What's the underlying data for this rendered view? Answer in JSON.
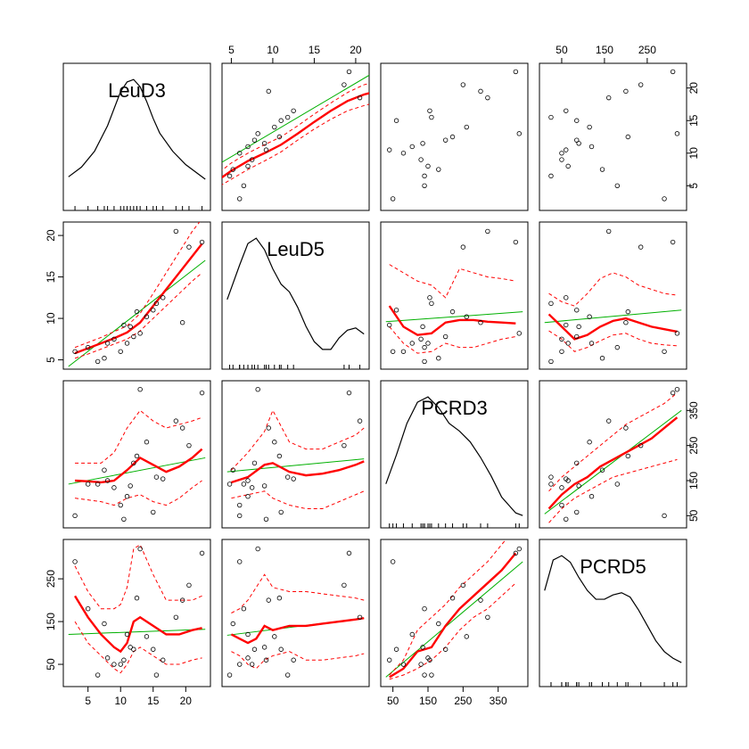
{
  "chart_data": {
    "type": "scatter",
    "subtype": "scatterplot-matrix",
    "variables": [
      {
        "name": "LeuD3",
        "range": [
          2,
          23
        ],
        "ticks": [
          5,
          10,
          15,
          20
        ]
      },
      {
        "name": "LeuD5",
        "range": [
          4.5,
          21
        ],
        "ticks": [
          5,
          10,
          15,
          20
        ]
      },
      {
        "name": "PCRD3",
        "range": [
          30,
          420
        ],
        "ticks": [
          50,
          150,
          250,
          350
        ]
      },
      {
        "name": "PCRD5",
        "range": [
          10,
          330
        ],
        "ticks": [
          50,
          150,
          250
        ]
      }
    ],
    "points": [
      [
        3,
        6,
        50,
        290
      ],
      [
        6.5,
        4.8,
        140,
        25
      ],
      [
        11,
        7,
        105,
        120
      ],
      [
        9,
        7.5,
        130,
        50
      ],
      [
        16.5,
        12.5,
        155,
        60
      ],
      [
        12,
        7.8,
        200,
        85
      ],
      [
        5,
        6.5,
        140,
        180
      ],
      [
        22.5,
        19.2,
        400,
        310
      ],
      [
        10.5,
        9.2,
        40,
        60
      ],
      [
        13,
        8.2,
        410,
        320
      ],
      [
        15.5,
        11.8,
        160,
        25
      ],
      [
        18.5,
        20.5,
        320,
        160
      ],
      [
        12.5,
        10.8,
        220,
        205
      ],
      [
        19.5,
        9.5,
        300,
        200
      ],
      [
        11.5,
        9,
        135,
        90
      ],
      [
        14,
        10.2,
        260,
        115
      ],
      [
        8,
        7,
        150,
        65
      ],
      [
        10,
        6,
        80,
        50
      ],
      [
        20.5,
        18.6,
        250,
        235
      ],
      [
        15,
        11,
        60,
        85
      ],
      [
        7.5,
        5.2,
        180,
        145
      ]
    ],
    "densities": [
      {
        "variable": "LeuD3",
        "x": [
          2,
          4,
          6,
          8,
          9,
          10,
          11,
          12,
          13,
          14,
          15,
          16,
          18,
          20,
          23
        ],
        "y": [
          0.024,
          0.032,
          0.045,
          0.066,
          0.08,
          0.094,
          0.102,
          0.104,
          0.098,
          0.086,
          0.072,
          0.06,
          0.045,
          0.034,
          0.022
        ]
      },
      {
        "variable": "LeuD5",
        "x": [
          4.5,
          6,
          7,
          8,
          9,
          10,
          11,
          12,
          13,
          14,
          15,
          16,
          17,
          18,
          19,
          20,
          21
        ],
        "y": [
          0.085,
          0.13,
          0.158,
          0.165,
          0.15,
          0.125,
          0.105,
          0.095,
          0.075,
          0.05,
          0.03,
          0.02,
          0.02,
          0.035,
          0.045,
          0.048,
          0.04
        ]
      },
      {
        "variable": "PCRD3",
        "x": [
          30,
          60,
          90,
          120,
          150,
          180,
          210,
          240,
          270,
          300,
          330,
          360,
          400,
          420
        ],
        "y": [
          0.0015,
          0.0026,
          0.0038,
          0.0046,
          0.0048,
          0.0044,
          0.0038,
          0.0035,
          0.0031,
          0.0025,
          0.0018,
          0.001,
          0.0004,
          0.0003
        ]
      },
      {
        "variable": "PCRD5",
        "x": [
          10,
          30,
          50,
          70,
          90,
          110,
          130,
          150,
          170,
          190,
          210,
          230,
          250,
          270,
          290,
          310,
          330
        ],
        "y": [
          0.0042,
          0.0056,
          0.0058,
          0.0055,
          0.0048,
          0.0042,
          0.0038,
          0.0038,
          0.004,
          0.0041,
          0.0039,
          0.0033,
          0.0026,
          0.0019,
          0.0014,
          0.0011,
          0.0009
        ]
      }
    ],
    "smooths": {
      "0-1": {
        "x": [
          3,
          5,
          7,
          9,
          11,
          13,
          15,
          17,
          19,
          21,
          22.5
        ],
        "y": [
          5.5,
          7.3,
          8.8,
          10,
          11.3,
          13,
          14.8,
          16.5,
          18,
          19,
          19.5
        ],
        "lower": [
          4.5,
          6,
          7.5,
          8.8,
          10.2,
          12,
          13.7,
          15.2,
          16.5,
          17.3,
          17.8
        ],
        "upper": [
          6.5,
          8.5,
          10,
          11.3,
          12.5,
          14.2,
          16,
          17.7,
          19.3,
          20.5,
          21
        ]
      },
      "0-2": {
        "x": [
          3,
          5,
          7,
          9,
          11,
          13,
          15,
          17,
          19,
          21,
          22.5
        ],
        "y": [
          190,
          170,
          140,
          130,
          150,
          200,
          210,
          220,
          215,
          210,
          200
        ],
        "lower": [
          130,
          110,
          80,
          60,
          80,
          130,
          140,
          150,
          140,
          140,
          130
        ],
        "upper": [
          270,
          240,
          210,
          200,
          220,
          270,
          290,
          300,
          280,
          280,
          270
        ]
      },
      "0-3": {
        "x": [
          3,
          5,
          7,
          9,
          11,
          13,
          15,
          17,
          19,
          21,
          22.5
        ],
        "y": [
          150,
          140,
          130,
          130,
          150,
          170,
          200,
          180,
          150,
          130,
          120
        ],
        "lower": [
          100,
          80,
          60,
          60,
          80,
          100,
          140,
          120,
          90,
          70,
          60
        ],
        "upper": [
          200,
          200,
          200,
          200,
          220,
          240,
          270,
          250,
          230,
          200,
          180
        ]
      },
      "1-0": {
        "x": [
          3,
          5,
          7,
          9,
          11,
          13,
          15,
          17,
          19,
          21,
          22.5
        ],
        "y": [
          5.8,
          6.4,
          7,
          7.6,
          8.3,
          9.5,
          11.5,
          13.5,
          15.5,
          17.5,
          19
        ],
        "lower": [
          5.2,
          5.7,
          6.3,
          6.9,
          7.5,
          8.5,
          10,
          11.5,
          13,
          14.5,
          15.5
        ],
        "upper": [
          6.5,
          7.1,
          7.7,
          8.4,
          9.1,
          10.6,
          13,
          15.5,
          18,
          20.5,
          22
        ]
      },
      "1-2": {
        "x": [
          40,
          80,
          120,
          160,
          200,
          240,
          280,
          320,
          360,
          400
        ],
        "y": [
          11.5,
          9,
          8,
          8.2,
          9.5,
          9.8,
          9.8,
          9.6,
          9.5,
          9.4
        ],
        "lower": [
          9,
          7,
          5.8,
          6,
          7,
          6.5,
          6.5,
          7,
          7.5,
          7.8
        ],
        "upper": [
          16.5,
          15.5,
          14.5,
          14,
          12.5,
          16,
          15.5,
          15,
          14.8,
          14.5
        ]
      },
      "1-3": {
        "x": [
          20,
          50,
          80,
          110,
          140,
          170,
          200,
          230,
          260,
          290,
          320
        ],
        "y": [
          10.5,
          9,
          7.5,
          8,
          9,
          9.7,
          10,
          9.5,
          9,
          8.7,
          8.4
        ],
        "lower": [
          8.5,
          7.5,
          6,
          6.5,
          7.3,
          8,
          8.2,
          7.5,
          7,
          6.8,
          6.7
        ],
        "upper": [
          13,
          12,
          11.5,
          13,
          14.8,
          15.5,
          15,
          14,
          13.5,
          13,
          12.8
        ]
      },
      "2-0": {
        "x": [
          3,
          5,
          7,
          9,
          11,
          13,
          15,
          17,
          19,
          21,
          22.5
        ],
        "y": [
          150,
          148,
          145,
          150,
          180,
          215,
          195,
          175,
          190,
          215,
          240
        ],
        "lower": [
          100,
          95,
          90,
          80,
          100,
          110,
          90,
          80,
          100,
          130,
          150
        ],
        "upper": [
          200,
          200,
          200,
          230,
          300,
          350,
          320,
          300,
          310,
          320,
          330
        ]
      },
      "2-1": {
        "x": [
          5,
          7,
          9,
          10,
          12,
          14,
          16,
          18,
          20,
          21
        ],
        "y": [
          145,
          160,
          195,
          200,
          175,
          165,
          170,
          180,
          195,
          205
        ],
        "lower": [
          100,
          110,
          120,
          100,
          80,
          70,
          70,
          90,
          110,
          120
        ],
        "upper": [
          180,
          230,
          290,
          350,
          260,
          240,
          240,
          260,
          280,
          300
        ]
      },
      "2-3": {
        "x": [
          20,
          50,
          80,
          110,
          140,
          170,
          200,
          230,
          260,
          290,
          320
        ],
        "y": [
          70,
          110,
          140,
          160,
          190,
          210,
          230,
          250,
          270,
          300,
          330
        ],
        "lower": [
          30,
          70,
          100,
          120,
          140,
          160,
          170,
          180,
          190,
          200,
          210
        ],
        "upper": [
          120,
          160,
          190,
          220,
          250,
          280,
          310,
          330,
          350,
          370,
          400
        ]
      },
      "3-0": {
        "x": [
          3,
          5,
          7,
          9,
          10,
          11,
          12,
          13,
          15,
          17,
          19,
          21,
          22.5
        ],
        "y": [
          210,
          160,
          120,
          90,
          80,
          100,
          150,
          160,
          140,
          120,
          120,
          130,
          135
        ],
        "lower": [
          150,
          100,
          70,
          40,
          30,
          50,
          80,
          90,
          70,
          50,
          50,
          60,
          65
        ],
        "upper": [
          280,
          220,
          180,
          180,
          190,
          230,
          320,
          330,
          260,
          200,
          200,
          200,
          210
        ]
      },
      "3-1": {
        "x": [
          5,
          6,
          7,
          8,
          9,
          10,
          12,
          14,
          16,
          18,
          20,
          21
        ],
        "y": [
          120,
          110,
          100,
          110,
          140,
          130,
          140,
          140,
          145,
          150,
          155,
          158
        ],
        "lower": [
          80,
          70,
          50,
          40,
          60,
          70,
          80,
          60,
          60,
          65,
          70,
          75
        ],
        "upper": [
          170,
          180,
          200,
          230,
          260,
          230,
          220,
          220,
          215,
          210,
          205,
          200
        ]
      },
      "3-2": {
        "x": [
          40,
          80,
          120,
          160,
          200,
          240,
          280,
          320,
          360,
          400
        ],
        "y": [
          20,
          40,
          80,
          90,
          140,
          180,
          210,
          240,
          270,
          310
        ],
        "lower": [
          15,
          25,
          40,
          60,
          90,
          130,
          160,
          180,
          210,
          240
        ],
        "upper": [
          25,
          60,
          130,
          160,
          190,
          230,
          260,
          290,
          330,
          370
        ]
      }
    },
    "fits": {
      "0-1": [
        [
          2,
          7.2
        ],
        [
          23,
          23
        ]
      ],
      "0-2": [
        [
          2,
          105
        ],
        [
          23,
          150
        ]
      ],
      "0-3": [
        [
          2,
          120
        ],
        [
          23,
          128
        ]
      ],
      "1-0": [
        [
          2,
          4.2
        ],
        [
          23,
          17
        ]
      ],
      "1-2": [
        [
          30,
          9.6
        ],
        [
          420,
          10.8
        ]
      ],
      "1-3": [
        [
          10,
          9.5
        ],
        [
          330,
          11
        ]
      ],
      "2-0": [
        [
          2,
          140
        ],
        [
          23,
          215
        ]
      ],
      "2-1": [
        [
          4.5,
          175
        ],
        [
          21,
          212
        ]
      ],
      "2-3": [
        [
          10,
          55
        ],
        [
          330,
          350
        ]
      ],
      "3-0": [
        [
          2,
          120
        ],
        [
          23,
          132
        ]
      ],
      "3-1": [
        [
          4.5,
          118
        ],
        [
          21,
          158
        ]
      ],
      "3-2": [
        [
          30,
          20
        ],
        [
          420,
          290
        ]
      ]
    },
    "colors": {
      "points": "#000000",
      "smooth": "#ff0000",
      "band": "#ff0000",
      "fit": "#00b000",
      "density": "#000000"
    }
  }
}
